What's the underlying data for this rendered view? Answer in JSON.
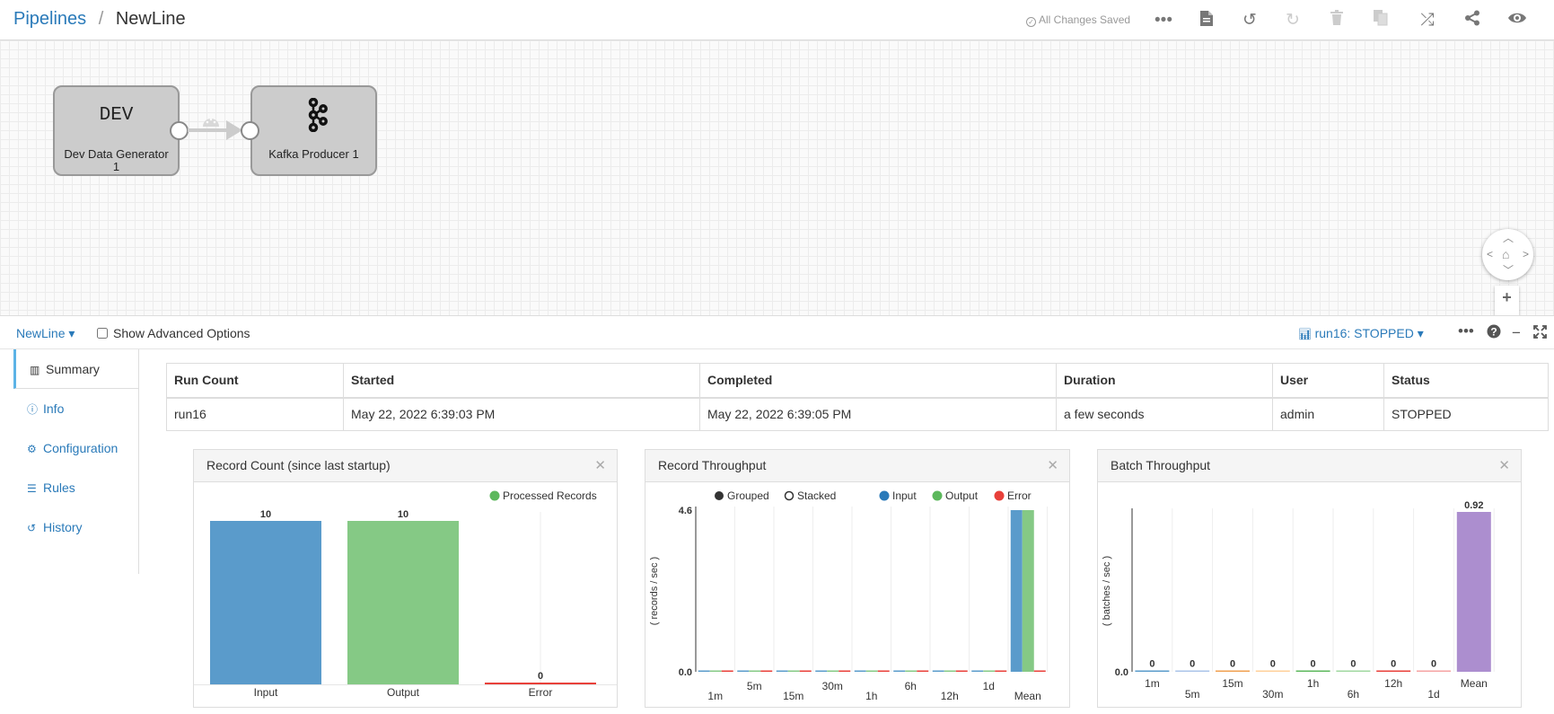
{
  "header": {
    "breadcrumb_root": "Pipelines",
    "breadcrumb_sep": "/",
    "pipeline_name": "NewLine",
    "saved_status": "All Changes Saved"
  },
  "canvas": {
    "stages": [
      {
        "icon_text": "DEV",
        "label_line1": "Dev Data Generator",
        "label_line2": "1"
      },
      {
        "icon": "kafka-icon",
        "label": "Kafka Producer 1"
      }
    ]
  },
  "detail_bar": {
    "pipeline_menu": "NewLine ▾",
    "advanced_label": "Show Advanced Options",
    "run_status": "run16: STOPPED ▾"
  },
  "tabs": [
    {
      "label": "Summary",
      "icon": "bar-chart-icon",
      "active": true
    },
    {
      "label": "Info",
      "icon": "info-icon"
    },
    {
      "label": "Configuration",
      "icon": "gear-icon"
    },
    {
      "label": "Rules",
      "icon": "list-icon"
    },
    {
      "label": "History",
      "icon": "history-icon"
    }
  ],
  "run_table": {
    "headers": [
      "Run Count",
      "Started",
      "Completed",
      "Duration",
      "User",
      "Status"
    ],
    "rows": [
      [
        "run16",
        "May 22, 2022 6:39:03 PM",
        "May 22, 2022 6:39:05 PM",
        "a few seconds",
        "admin",
        "STOPPED"
      ]
    ]
  },
  "panels": {
    "record_count": {
      "title": "Record Count (since last startup)"
    },
    "record_throughput": {
      "title": "Record Throughput"
    },
    "batch_throughput": {
      "title": "Batch Throughput"
    }
  },
  "colors": {
    "input": "#5a9bcb",
    "output": "#85c985",
    "error": "#e8403a",
    "mean_batch": "#ac8ecf",
    "link": "#2a7ab9"
  },
  "chart_data": [
    {
      "type": "bar",
      "title": "Record Count (since last startup)",
      "legend": [
        "Processed Records"
      ],
      "legend_color": "#5cb85c",
      "categories": [
        "Input",
        "Output",
        "Error"
      ],
      "values": [
        10,
        10,
        0
      ],
      "value_labels": [
        "10",
        "10",
        "0"
      ],
      "colors": [
        "#5a9bcb",
        "#85c985",
        "#e8403a"
      ],
      "ylim": [
        0,
        10
      ]
    },
    {
      "type": "bar",
      "title": "Record Throughput",
      "legend_modes": [
        "Grouped",
        "Stacked"
      ],
      "ylabel": "( records / sec )",
      "ytick_labels": [
        "4.6",
        "0.0"
      ],
      "ylim": [
        0,
        4.6
      ],
      "categories": [
        "1m",
        "5m",
        "15m",
        "30m",
        "1h",
        "6h",
        "12h",
        "1d",
        "Mean"
      ],
      "series": [
        {
          "name": "Input",
          "color": "#2a7ab9",
          "bar_color": "#5a9bcb",
          "values": [
            0,
            0,
            0,
            0,
            0,
            0,
            0,
            0,
            4.6
          ]
        },
        {
          "name": "Output",
          "color": "#5cb85c",
          "bar_color": "#85c985",
          "values": [
            0,
            0,
            0,
            0,
            0,
            0,
            0,
            0,
            4.6
          ]
        },
        {
          "name": "Error",
          "color": "#e8403a",
          "bar_color": "#e8403a",
          "values": [
            0,
            0,
            0,
            0,
            0,
            0,
            0,
            0,
            0
          ]
        }
      ]
    },
    {
      "type": "bar",
      "title": "Batch Throughput",
      "ylabel": "( batches / sec )",
      "ytick_labels": [
        "0.0"
      ],
      "ylim": [
        0,
        0.92
      ],
      "categories": [
        "1m",
        "5m",
        "15m",
        "30m",
        "1h",
        "6h",
        "12h",
        "1d",
        "Mean"
      ],
      "values": [
        0,
        0,
        0,
        0,
        0,
        0,
        0,
        0,
        0.92
      ],
      "value_labels": [
        "0",
        "0",
        "0",
        "0",
        "0",
        "0",
        "0",
        "0",
        "0.92"
      ],
      "colors": [
        "#5a9bcb",
        "#aac4e8",
        "#f0a050",
        "#ffd09a",
        "#5cb85c",
        "#a0d8a0",
        "#e8403a",
        "#f5a3a3",
        "#ac8ecf"
      ]
    }
  ]
}
